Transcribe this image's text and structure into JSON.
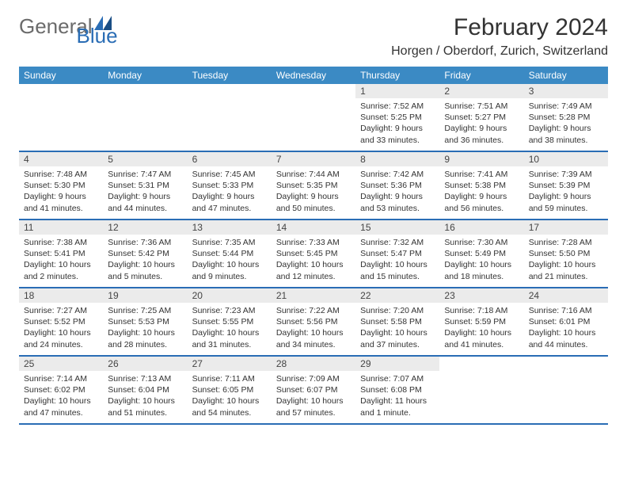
{
  "logo": {
    "text1": "General",
    "text2": "Blue"
  },
  "title": "February 2024",
  "location": "Horgen / Oberdorf, Zurich, Switzerland",
  "colors": {
    "header_bg": "#3b8ac4",
    "week_border": "#2a6db5",
    "daynum_bg": "#ebebeb",
    "text": "#333333",
    "body_bg": "#ffffff"
  },
  "fonts": {
    "title_pt": 30,
    "location_pt": 16,
    "dayhead_pt": 12,
    "body_pt": 10.5
  },
  "day_headers": [
    "Sunday",
    "Monday",
    "Tuesday",
    "Wednesday",
    "Thursday",
    "Friday",
    "Saturday"
  ],
  "weeks": [
    [
      null,
      null,
      null,
      null,
      {
        "d": "1",
        "sr": "Sunrise: 7:52 AM",
        "ss": "Sunset: 5:25 PM",
        "dl1": "Daylight: 9 hours",
        "dl2": "and 33 minutes."
      },
      {
        "d": "2",
        "sr": "Sunrise: 7:51 AM",
        "ss": "Sunset: 5:27 PM",
        "dl1": "Daylight: 9 hours",
        "dl2": "and 36 minutes."
      },
      {
        "d": "3",
        "sr": "Sunrise: 7:49 AM",
        "ss": "Sunset: 5:28 PM",
        "dl1": "Daylight: 9 hours",
        "dl2": "and 38 minutes."
      }
    ],
    [
      {
        "d": "4",
        "sr": "Sunrise: 7:48 AM",
        "ss": "Sunset: 5:30 PM",
        "dl1": "Daylight: 9 hours",
        "dl2": "and 41 minutes."
      },
      {
        "d": "5",
        "sr": "Sunrise: 7:47 AM",
        "ss": "Sunset: 5:31 PM",
        "dl1": "Daylight: 9 hours",
        "dl2": "and 44 minutes."
      },
      {
        "d": "6",
        "sr": "Sunrise: 7:45 AM",
        "ss": "Sunset: 5:33 PM",
        "dl1": "Daylight: 9 hours",
        "dl2": "and 47 minutes."
      },
      {
        "d": "7",
        "sr": "Sunrise: 7:44 AM",
        "ss": "Sunset: 5:35 PM",
        "dl1": "Daylight: 9 hours",
        "dl2": "and 50 minutes."
      },
      {
        "d": "8",
        "sr": "Sunrise: 7:42 AM",
        "ss": "Sunset: 5:36 PM",
        "dl1": "Daylight: 9 hours",
        "dl2": "and 53 minutes."
      },
      {
        "d": "9",
        "sr": "Sunrise: 7:41 AM",
        "ss": "Sunset: 5:38 PM",
        "dl1": "Daylight: 9 hours",
        "dl2": "and 56 minutes."
      },
      {
        "d": "10",
        "sr": "Sunrise: 7:39 AM",
        "ss": "Sunset: 5:39 PM",
        "dl1": "Daylight: 9 hours",
        "dl2": "and 59 minutes."
      }
    ],
    [
      {
        "d": "11",
        "sr": "Sunrise: 7:38 AM",
        "ss": "Sunset: 5:41 PM",
        "dl1": "Daylight: 10 hours",
        "dl2": "and 2 minutes."
      },
      {
        "d": "12",
        "sr": "Sunrise: 7:36 AM",
        "ss": "Sunset: 5:42 PM",
        "dl1": "Daylight: 10 hours",
        "dl2": "and 5 minutes."
      },
      {
        "d": "13",
        "sr": "Sunrise: 7:35 AM",
        "ss": "Sunset: 5:44 PM",
        "dl1": "Daylight: 10 hours",
        "dl2": "and 9 minutes."
      },
      {
        "d": "14",
        "sr": "Sunrise: 7:33 AM",
        "ss": "Sunset: 5:45 PM",
        "dl1": "Daylight: 10 hours",
        "dl2": "and 12 minutes."
      },
      {
        "d": "15",
        "sr": "Sunrise: 7:32 AM",
        "ss": "Sunset: 5:47 PM",
        "dl1": "Daylight: 10 hours",
        "dl2": "and 15 minutes."
      },
      {
        "d": "16",
        "sr": "Sunrise: 7:30 AM",
        "ss": "Sunset: 5:49 PM",
        "dl1": "Daylight: 10 hours",
        "dl2": "and 18 minutes."
      },
      {
        "d": "17",
        "sr": "Sunrise: 7:28 AM",
        "ss": "Sunset: 5:50 PM",
        "dl1": "Daylight: 10 hours",
        "dl2": "and 21 minutes."
      }
    ],
    [
      {
        "d": "18",
        "sr": "Sunrise: 7:27 AM",
        "ss": "Sunset: 5:52 PM",
        "dl1": "Daylight: 10 hours",
        "dl2": "and 24 minutes."
      },
      {
        "d": "19",
        "sr": "Sunrise: 7:25 AM",
        "ss": "Sunset: 5:53 PM",
        "dl1": "Daylight: 10 hours",
        "dl2": "and 28 minutes."
      },
      {
        "d": "20",
        "sr": "Sunrise: 7:23 AM",
        "ss": "Sunset: 5:55 PM",
        "dl1": "Daylight: 10 hours",
        "dl2": "and 31 minutes."
      },
      {
        "d": "21",
        "sr": "Sunrise: 7:22 AM",
        "ss": "Sunset: 5:56 PM",
        "dl1": "Daylight: 10 hours",
        "dl2": "and 34 minutes."
      },
      {
        "d": "22",
        "sr": "Sunrise: 7:20 AM",
        "ss": "Sunset: 5:58 PM",
        "dl1": "Daylight: 10 hours",
        "dl2": "and 37 minutes."
      },
      {
        "d": "23",
        "sr": "Sunrise: 7:18 AM",
        "ss": "Sunset: 5:59 PM",
        "dl1": "Daylight: 10 hours",
        "dl2": "and 41 minutes."
      },
      {
        "d": "24",
        "sr": "Sunrise: 7:16 AM",
        "ss": "Sunset: 6:01 PM",
        "dl1": "Daylight: 10 hours",
        "dl2": "and 44 minutes."
      }
    ],
    [
      {
        "d": "25",
        "sr": "Sunrise: 7:14 AM",
        "ss": "Sunset: 6:02 PM",
        "dl1": "Daylight: 10 hours",
        "dl2": "and 47 minutes."
      },
      {
        "d": "26",
        "sr": "Sunrise: 7:13 AM",
        "ss": "Sunset: 6:04 PM",
        "dl1": "Daylight: 10 hours",
        "dl2": "and 51 minutes."
      },
      {
        "d": "27",
        "sr": "Sunrise: 7:11 AM",
        "ss": "Sunset: 6:05 PM",
        "dl1": "Daylight: 10 hours",
        "dl2": "and 54 minutes."
      },
      {
        "d": "28",
        "sr": "Sunrise: 7:09 AM",
        "ss": "Sunset: 6:07 PM",
        "dl1": "Daylight: 10 hours",
        "dl2": "and 57 minutes."
      },
      {
        "d": "29",
        "sr": "Sunrise: 7:07 AM",
        "ss": "Sunset: 6:08 PM",
        "dl1": "Daylight: 11 hours",
        "dl2": "and 1 minute."
      },
      null,
      null
    ]
  ]
}
